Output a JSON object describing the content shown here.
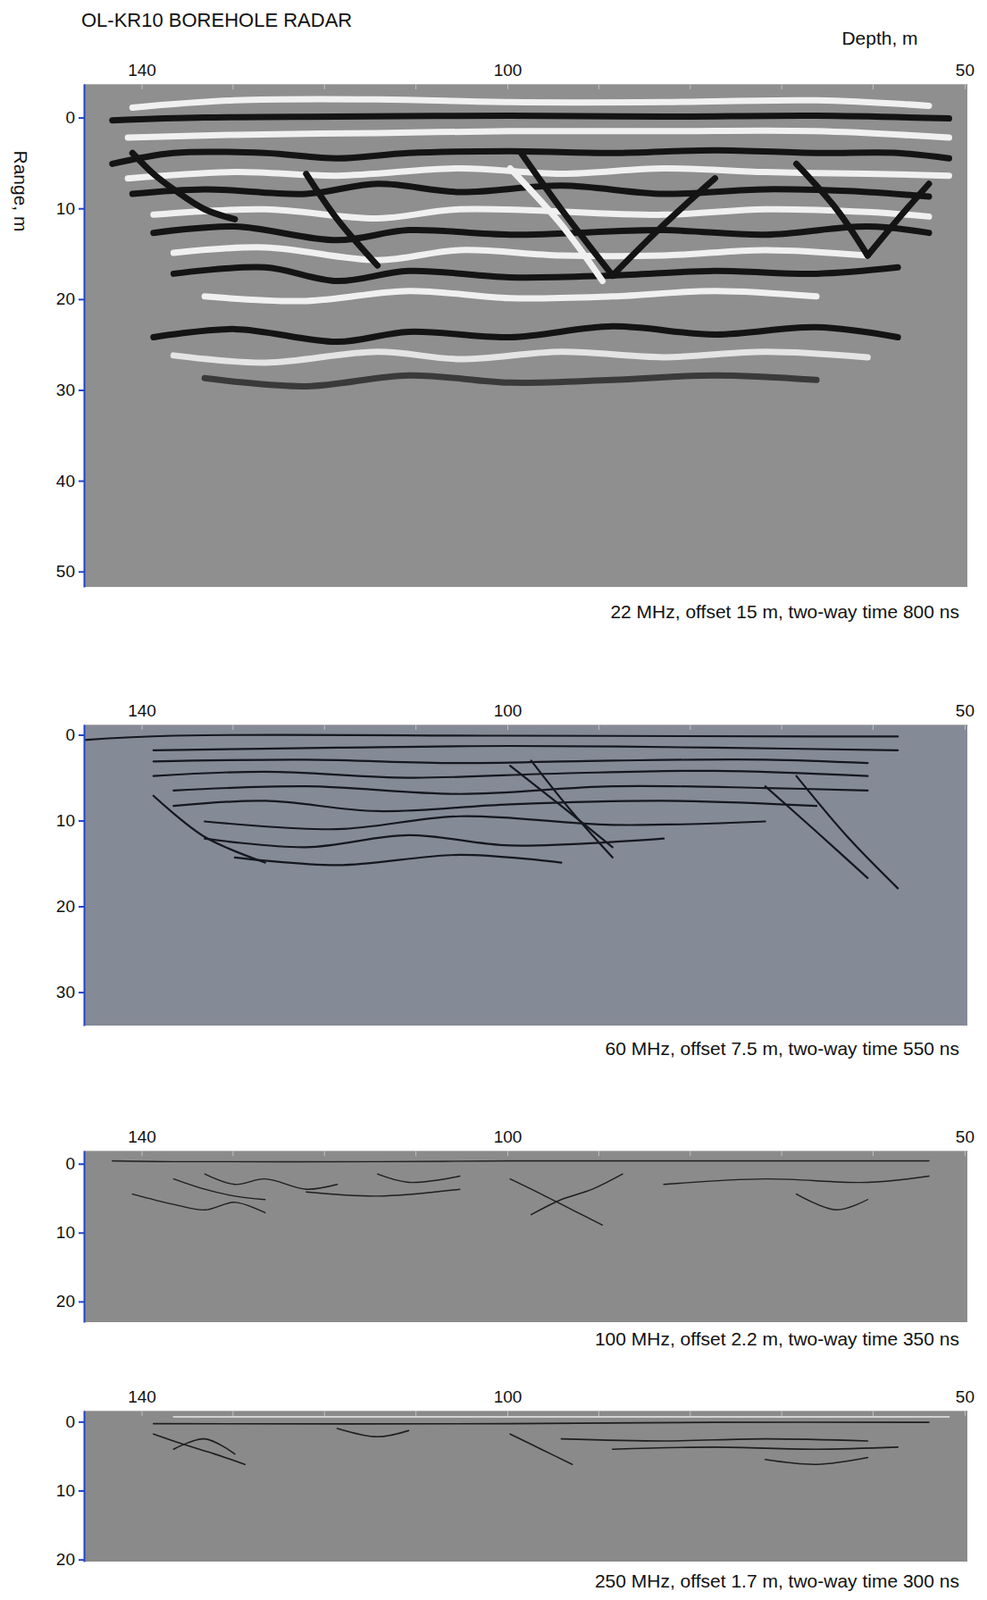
{
  "chart_data": [
    {
      "type": "line",
      "title": "OL-KR10 BOREHOLE RADAR",
      "x_label": "Depth, m",
      "y_label": "Range, m",
      "caption": "22 MHz, offset 15 m, two-way time 800 ns",
      "xlim": [
        146.3,
        49.7
      ],
      "xticks": [
        140,
        100,
        50
      ],
      "xticks_minor": [
        130,
        120,
        110,
        90,
        80,
        70,
        60
      ],
      "ylim": [
        -3.7,
        51.7
      ],
      "yticks": [
        0,
        10,
        20,
        30,
        40,
        50
      ],
      "series": [
        {
          "color": "#f0f0f0",
          "x": [
            141.0,
            129.8,
            114.2,
            99.7,
            82.9,
            66.2,
            53.9
          ],
          "values": [
            -1.1,
            -1.9,
            -2.0,
            -1.7,
            -1.7,
            -1.9,
            -1.3
          ]
        },
        {
          "color": "#141414",
          "x": [
            143.2,
            133.1,
            118.6,
            99.7,
            82.9,
            66.2,
            51.7
          ],
          "values": [
            0.3,
            0.0,
            -0.1,
            -0.2,
            -0.1,
            -0.2,
            0.1
          ]
        },
        {
          "color": "#f0f0f0",
          "x": [
            141.5,
            129.8,
            114.2,
            99.7,
            82.9,
            66.2,
            51.7
          ],
          "values": [
            2.2,
            1.9,
            1.7,
            1.5,
            1.5,
            1.5,
            2.2
          ]
        },
        {
          "color": "#141414",
          "x": [
            143.2,
            136.5,
            126.5,
            118.6,
            110.8,
            99.7,
            88.5,
            77.3,
            66.2,
            57.3,
            51.7
          ],
          "values": [
            5.1,
            3.9,
            3.9,
            4.5,
            3.9,
            3.7,
            3.9,
            3.6,
            3.9,
            3.9,
            4.5
          ]
        },
        {
          "color": "#f0f0f0",
          "x": [
            141.5,
            129.8,
            118.6,
            105.2,
            94.1,
            82.9,
            71.8,
            60.6,
            51.7
          ],
          "values": [
            6.7,
            6.0,
            6.4,
            5.6,
            6.2,
            5.6,
            6.0,
            6.2,
            6.4
          ]
        },
        {
          "color": "#141414",
          "x": [
            141.0,
            133.1,
            122.0,
            114.2,
            105.2,
            94.1,
            82.9,
            71.8,
            60.6,
            53.9
          ],
          "values": [
            8.4,
            7.9,
            8.4,
            7.3,
            8.2,
            7.5,
            8.4,
            7.9,
            8.2,
            8.7
          ]
        },
        {
          "color": "#f0f0f0",
          "x": [
            138.7,
            126.5,
            114.2,
            105.2,
            82.9,
            71.8,
            60.6,
            53.9
          ],
          "values": [
            10.7,
            10.1,
            11.1,
            10.1,
            10.7,
            10.1,
            10.4,
            10.9
          ]
        },
        {
          "color": "#141414",
          "x": [
            138.7,
            129.8,
            118.6,
            110.8,
            99.7,
            82.9,
            71.8,
            60.6,
            53.9
          ],
          "values": [
            12.7,
            12.0,
            13.5,
            12.4,
            12.9,
            12.4,
            12.9,
            12.0,
            12.7
          ]
        },
        {
          "color": "#f0f0f0",
          "x": [
            136.5,
            126.5,
            114.2,
            105.2,
            94.1,
            82.9,
            71.8,
            60.6
          ],
          "values": [
            14.9,
            14.3,
            15.7,
            14.6,
            15.2,
            15.2,
            14.6,
            15.2
          ]
        },
        {
          "color": "#141414",
          "x": [
            136.5,
            126.5,
            118.6,
            110.8,
            99.7,
            88.5,
            77.3,
            66.2,
            57.3
          ],
          "values": [
            17.2,
            16.5,
            18.0,
            16.9,
            17.6,
            17.4,
            16.9,
            17.2,
            16.5
          ]
        },
        {
          "color": "#f0f0f0",
          "x": [
            133.1,
            122.0,
            110.8,
            99.7,
            88.5,
            77.3,
            66.2
          ],
          "values": [
            19.7,
            20.2,
            19.1,
            19.9,
            19.7,
            19.1,
            19.7
          ]
        },
        {
          "color": "#141414",
          "x": [
            138.7,
            129.8,
            118.6,
            110.8,
            99.7,
            88.5,
            77.3,
            66.2,
            57.3
          ],
          "values": [
            24.2,
            23.3,
            24.7,
            23.6,
            24.2,
            23.0,
            23.9,
            23.1,
            24.2
          ]
        },
        {
          "color": "#e4e4e4",
          "x": [
            136.5,
            126.5,
            114.2,
            105.2,
            94.1,
            82.9,
            71.8,
            60.6
          ],
          "values": [
            26.2,
            27.0,
            25.8,
            26.6,
            25.8,
            26.4,
            25.8,
            26.4
          ]
        },
        {
          "color": "#3a3a3a",
          "x": [
            133.1,
            122.0,
            110.8,
            99.7,
            88.5,
            77.3,
            66.2
          ],
          "values": [
            28.7,
            29.6,
            28.4,
            29.2,
            28.9,
            28.4,
            28.9
          ]
        },
        {
          "color": "#141414",
          "x": [
            98.5,
            94.1,
            88.5
          ],
          "values": [
            3.9,
            10.1,
            17.4
          ]
        },
        {
          "color": "#f0f0f0",
          "x": [
            99.7,
            94.1,
            89.6
          ],
          "values": [
            5.6,
            11.8,
            18.0
          ]
        },
        {
          "color": "#141414",
          "x": [
            88.5,
            82.9,
            77.3
          ],
          "values": [
            17.4,
            11.8,
            6.7
          ]
        },
        {
          "color": "#141414",
          "x": [
            122.0,
            118.6,
            114.2
          ],
          "values": [
            6.2,
            11.2,
            16.3
          ]
        },
        {
          "color": "#141414",
          "x": [
            68.4,
            64.0,
            60.6
          ],
          "values": [
            5.1,
            10.1,
            15.2
          ]
        },
        {
          "color": "#141414",
          "x": [
            60.6,
            57.3,
            53.9
          ],
          "values": [
            15.2,
            11.2,
            7.3
          ]
        },
        {
          "color": "#141414",
          "x": [
            141.0,
            138.7,
            136.5,
            133.1,
            129.8
          ],
          "values": [
            3.9,
            6.2,
            7.9,
            10.1,
            11.2
          ]
        }
      ]
    },
    {
      "type": "line",
      "caption": "60 MHz, offset 7.5 m, two-way time 550 ns",
      "xlim": [
        146.3,
        49.7
      ],
      "xticks": [
        140,
        100,
        50
      ],
      "xticks_minor": [
        130,
        120,
        110,
        90,
        80,
        70,
        60
      ],
      "ylim": [
        -1.2,
        33.9
      ],
      "yticks": [
        0,
        10,
        20,
        30
      ],
      "series": [
        {
          "color": "#15171f",
          "x": [
            146.3,
            136.5,
            99.7,
            66.2,
            57.3
          ],
          "values": [
            0.6,
            0.1,
            0.1,
            0.2,
            0.2
          ]
        },
        {
          "color": "#15171f",
          "x": [
            138.7,
            118.6,
            99.7,
            77.3,
            57.3
          ],
          "values": [
            1.8,
            1.5,
            1.3,
            1.5,
            1.8
          ]
        },
        {
          "color": "#15171f",
          "x": [
            138.7,
            122.0,
            105.2,
            88.5,
            71.8,
            60.6
          ],
          "values": [
            3.1,
            2.9,
            3.3,
            3.0,
            2.9,
            3.3
          ]
        },
        {
          "color": "#15171f",
          "x": [
            138.7,
            126.5,
            110.8,
            94.1,
            77.3,
            60.6
          ],
          "values": [
            4.8,
            4.3,
            5.0,
            4.5,
            4.2,
            4.8
          ]
        },
        {
          "color": "#15171f",
          "x": [
            136.5,
            122.0,
            105.2,
            88.5,
            71.8,
            60.6
          ],
          "values": [
            6.5,
            6.0,
            6.9,
            6.0,
            6.2,
            6.5
          ]
        },
        {
          "color": "#15171f",
          "x": [
            136.5,
            126.5,
            114.2,
            99.7,
            82.9,
            66.2
          ],
          "values": [
            8.3,
            7.7,
            8.9,
            8.1,
            7.7,
            8.3
          ]
        },
        {
          "color": "#15171f",
          "x": [
            133.1,
            118.6,
            105.2,
            88.5,
            71.8
          ],
          "values": [
            10.1,
            11.0,
            9.5,
            10.5,
            10.1
          ]
        },
        {
          "color": "#15171f",
          "x": [
            133.1,
            122.0,
            110.8,
            99.7,
            82.9
          ],
          "values": [
            12.1,
            13.1,
            11.7,
            12.9,
            12.1
          ]
        },
        {
          "color": "#15171f",
          "x": [
            129.8,
            118.6,
            105.2,
            94.1
          ],
          "values": [
            14.3,
            15.2,
            14.0,
            14.9
          ]
        },
        {
          "color": "#15171f",
          "x": [
            99.7,
            94.1,
            88.5
          ],
          "values": [
            3.6,
            8.3,
            13.1
          ]
        },
        {
          "color": "#15171f",
          "x": [
            97.4,
            93.0,
            88.5
          ],
          "values": [
            3.0,
            8.9,
            14.3
          ]
        },
        {
          "color": "#15171f",
          "x": [
            68.4,
            62.8,
            57.3
          ],
          "values": [
            4.8,
            11.9,
            17.9
          ]
        },
        {
          "color": "#15171f",
          "x": [
            71.8,
            66.2,
            60.6
          ],
          "values": [
            6.0,
            11.3,
            16.7
          ]
        },
        {
          "color": "#15171f",
          "x": [
            138.7,
            133.1,
            126.5
          ],
          "values": [
            7.1,
            11.9,
            14.9
          ]
        }
      ]
    },
    {
      "type": "line",
      "caption": "100 MHz, offset 2.2 m, two-way time 350 ns",
      "xlim": [
        146.3,
        49.7
      ],
      "xticks": [
        140,
        100,
        50
      ],
      "xticks_minor": [
        130,
        120,
        110,
        90,
        80,
        70,
        60
      ],
      "ylim": [
        -1.9,
        23.0
      ],
      "yticks": [
        0,
        10,
        20
      ],
      "series": [
        {
          "color": "#1e1e1e",
          "x": [
            143.2,
            136.5,
            114.2,
            99.7,
            77.3,
            53.9
          ],
          "values": [
            -0.4,
            -0.3,
            -0.3,
            -0.4,
            -0.4,
            -0.4
          ]
        },
        {
          "color": "#1e1e1e",
          "x": [
            136.5,
            133.1,
            129.8,
            126.5
          ],
          "values": [
            2.2,
            3.7,
            4.7,
            5.2
          ]
        },
        {
          "color": "#1e1e1e",
          "x": [
            133.1,
            129.8,
            126.5,
            122.0,
            118.6
          ],
          "values": [
            1.5,
            3.0,
            2.2,
            3.7,
            3.0
          ]
        },
        {
          "color": "#1e1e1e",
          "x": [
            141.0,
            136.5,
            133.1,
            129.8,
            126.5
          ],
          "values": [
            4.4,
            5.9,
            6.7,
            5.6,
            7.1
          ]
        },
        {
          "color": "#1e1e1e",
          "x": [
            114.2,
            110.8,
            105.2
          ],
          "values": [
            1.5,
            2.7,
            1.8
          ]
        },
        {
          "color": "#1e1e1e",
          "x": [
            99.7,
            96.3,
            92.9,
            89.6
          ],
          "values": [
            2.2,
            4.4,
            6.7,
            8.9
          ]
        },
        {
          "color": "#1e1e1e",
          "x": [
            97.4,
            94.1,
            90.7,
            87.4
          ],
          "values": [
            7.4,
            5.2,
            3.7,
            1.5
          ]
        },
        {
          "color": "#1e1e1e",
          "x": [
            82.9,
            71.8,
            60.6,
            53.9
          ],
          "values": [
            3.0,
            2.2,
            2.7,
            1.8
          ]
        },
        {
          "color": "#1e1e1e",
          "x": [
            68.4,
            64.0,
            60.6
          ],
          "values": [
            4.4,
            6.7,
            5.2
          ]
        },
        {
          "color": "#1e1e1e",
          "x": [
            122.0,
            114.2,
            105.2
          ],
          "values": [
            4.1,
            4.7,
            3.7
          ]
        }
      ]
    },
    {
      "type": "line",
      "caption": "250 MHz, offset 1.7 m, two-way time 300 ns",
      "xlim": [
        146.3,
        49.7
      ],
      "xticks": [
        140,
        100,
        50
      ],
      "xticks_minor": [
        130,
        120,
        110,
        90,
        80,
        70,
        60
      ],
      "ylim": [
        -1.6,
        20.3
      ],
      "yticks": [
        0,
        10,
        20
      ],
      "series": [
        {
          "color": "#e8e8e8",
          "x": [
            136.5,
            114.2,
            88.5,
            66.2,
            51.7
          ],
          "values": [
            -0.7,
            -0.7,
            -0.7,
            -0.7,
            -0.7
          ]
        },
        {
          "color": "#1e1e1e",
          "x": [
            138.7,
            99.7,
            77.3,
            53.9
          ],
          "values": [
            0.3,
            0.3,
            0.1,
            0.1
          ]
        },
        {
          "color": "#1e1e1e",
          "x": [
            138.7,
            135.4,
            132.0,
            128.7
          ],
          "values": [
            1.8,
            3.3,
            4.7,
            6.2
          ]
        },
        {
          "color": "#1e1e1e",
          "x": [
            136.5,
            133.1,
            129.8
          ],
          "values": [
            4.0,
            2.5,
            4.7
          ]
        },
        {
          "color": "#1e1e1e",
          "x": [
            99.7,
            96.3,
            92.9
          ],
          "values": [
            1.8,
            4.0,
            6.2
          ]
        },
        {
          "color": "#1e1e1e",
          "x": [
            94.1,
            82.9,
            71.8,
            60.6
          ],
          "values": [
            2.5,
            2.8,
            2.5,
            2.8
          ]
        },
        {
          "color": "#1e1e1e",
          "x": [
            88.5,
            77.3,
            66.2,
            57.3
          ],
          "values": [
            4.0,
            3.7,
            4.0,
            3.7
          ]
        },
        {
          "color": "#1e1e1e",
          "x": [
            71.8,
            66.2,
            60.6
          ],
          "values": [
            5.5,
            6.2,
            5.2
          ]
        },
        {
          "color": "#1e1e1e",
          "x": [
            118.6,
            114.2,
            110.8
          ],
          "values": [
            1.0,
            2.2,
            1.3
          ]
        }
      ]
    }
  ]
}
